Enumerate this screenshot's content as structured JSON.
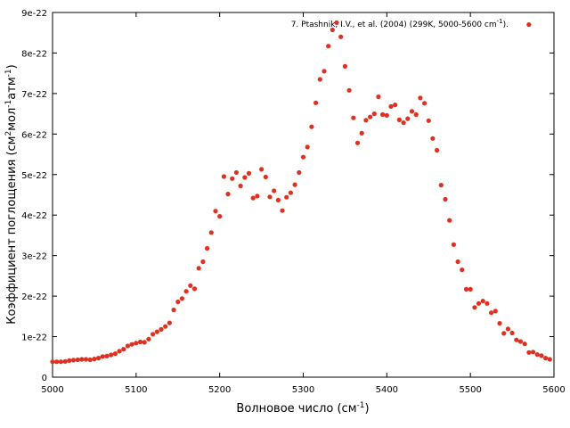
{
  "chart_data": {
    "type": "scatter",
    "xlabel": "Волновое число (см",
    "xlabel_sup": "-1",
    "xlabel_end": ")",
    "ylabel_parts": [
      "Коэффициент поглощения (см",
      "2",
      "мол",
      "-1",
      "атм",
      "-1",
      ")"
    ],
    "xlim": [
      5000,
      5600
    ],
    "ylim": [
      0,
      9e-22
    ],
    "xticks": [
      {
        "value": 5000,
        "label": "5000"
      },
      {
        "value": 5100,
        "label": "5100"
      },
      {
        "value": 5200,
        "label": "5200"
      },
      {
        "value": 5300,
        "label": "5300"
      },
      {
        "value": 5400,
        "label": "5400"
      },
      {
        "value": 5500,
        "label": "5500"
      },
      {
        "value": 5600,
        "label": "5600"
      }
    ],
    "yticks": [
      {
        "value": 0,
        "label": "0"
      },
      {
        "value": 1e-22,
        "label": "1e-22"
      },
      {
        "value": 2e-22,
        "label": "2e-22"
      },
      {
        "value": 3e-22,
        "label": "3e-22"
      },
      {
        "value": 4e-22,
        "label": "4e-22"
      },
      {
        "value": 5e-22,
        "label": "5e-22"
      },
      {
        "value": 6e-22,
        "label": "6e-22"
      },
      {
        "value": 7e-22,
        "label": "7e-22"
      },
      {
        "value": 8e-22,
        "label": "8e-22"
      },
      {
        "value": 9e-22,
        "label": "9e-22"
      }
    ],
    "grid": false,
    "legend_position": "top-right",
    "series": [
      {
        "name": "7. Ptashnik, I.V., et al. (2004) (299K, 5000-5600 cm",
        "name_sup": "-1",
        "name_end": ").",
        "color": "#e03020",
        "x": [
          5000,
          5005,
          5010,
          5015,
          5020,
          5025,
          5030,
          5035,
          5040,
          5045,
          5050,
          5055,
          5060,
          5065,
          5070,
          5075,
          5080,
          5085,
          5090,
          5095,
          5100,
          5105,
          5110,
          5115,
          5120,
          5125,
          5130,
          5135,
          5140,
          5145,
          5150,
          5155,
          5160,
          5165,
          5170,
          5175,
          5180,
          5185,
          5190,
          5195,
          5200,
          5205,
          5210,
          5215,
          5220,
          5225,
          5230,
          5235,
          5240,
          5245,
          5250,
          5255,
          5260,
          5265,
          5270,
          5275,
          5280,
          5285,
          5290,
          5295,
          5300,
          5305,
          5310,
          5315,
          5320,
          5325,
          5330,
          5335,
          5340,
          5345,
          5350,
          5355,
          5360,
          5365,
          5370,
          5375,
          5380,
          5385,
          5390,
          5395,
          5400,
          5405,
          5410,
          5415,
          5420,
          5425,
          5430,
          5435,
          5440,
          5445,
          5450,
          5455,
          5460,
          5465,
          5470,
          5475,
          5480,
          5485,
          5490,
          5495,
          5500,
          5505,
          5510,
          5515,
          5520,
          5525,
          5530,
          5535,
          5540,
          5545,
          5550,
          5555,
          5560,
          5565,
          5570,
          5575,
          5580,
          5585,
          5590,
          5595
        ],
        "y": [
          3.8e-23,
          3.8e-23,
          3.8e-23,
          3.9e-23,
          4.1e-23,
          4.2e-23,
          4.3e-23,
          4.4e-23,
          4.4e-23,
          4.3e-23,
          4.5e-23,
          4.7e-23,
          5.1e-23,
          5.2e-23,
          5.5e-23,
          5.8e-23,
          6.4e-23,
          6.9e-23,
          7.7e-23,
          8.1e-23,
          8.4e-23,
          8.7e-23,
          8.6e-23,
          9.4e-23,
          1.06e-22,
          1.12e-22,
          1.18e-22,
          1.25e-22,
          1.34e-22,
          1.66e-22,
          1.86e-22,
          1.94e-22,
          2.12e-22,
          2.26e-22,
          2.18e-22,
          2.69e-22,
          2.85e-22,
          3.18e-22,
          3.57e-22,
          4.1e-22,
          3.97e-22,
          4.95e-22,
          4.52e-22,
          4.9e-22,
          5.05e-22,
          4.72e-22,
          4.93e-22,
          5.03e-22,
          4.42e-22,
          4.47e-22,
          5.13e-22,
          4.94e-22,
          4.45e-22,
          4.6e-22,
          4.37e-22,
          4.11e-22,
          4.44e-22,
          4.55e-22,
          4.75e-22,
          5.05e-22,
          5.43e-22,
          5.68e-22,
          6.18e-22,
          6.77e-22,
          7.35e-22,
          7.55e-22,
          8.17e-22,
          8.57e-22,
          8.75e-22,
          8.4e-22,
          7.67e-22,
          7.08e-22,
          6.4e-22,
          5.78e-22,
          6.02e-22,
          6.34e-22,
          6.42e-22,
          6.5e-22,
          6.92e-22,
          6.48e-22,
          6.46e-22,
          6.68e-22,
          6.72e-22,
          6.35e-22,
          6.28e-22,
          6.38e-22,
          6.56e-22,
          6.48e-22,
          6.89e-22,
          6.76e-22,
          6.33e-22,
          5.89e-22,
          5.6e-22,
          4.74e-22,
          4.39e-22,
          3.87e-22,
          3.27e-22,
          2.85e-22,
          2.65e-22,
          2.17e-22,
          2.17e-22,
          1.72e-22,
          1.82e-22,
          1.88e-22,
          1.82e-22,
          1.59e-22,
          1.63e-22,
          1.33e-22,
          1.08e-22,
          1.19e-22,
          1.09e-22,
          9.2e-23,
          8.8e-23,
          8.2e-23,
          6.1e-23,
          6.2e-23,
          5.6e-23,
          5.3e-23,
          4.7e-23,
          4.4e-23
        ]
      }
    ],
    "legend_sample": [
      5570,
      8.7e-22
    ]
  }
}
